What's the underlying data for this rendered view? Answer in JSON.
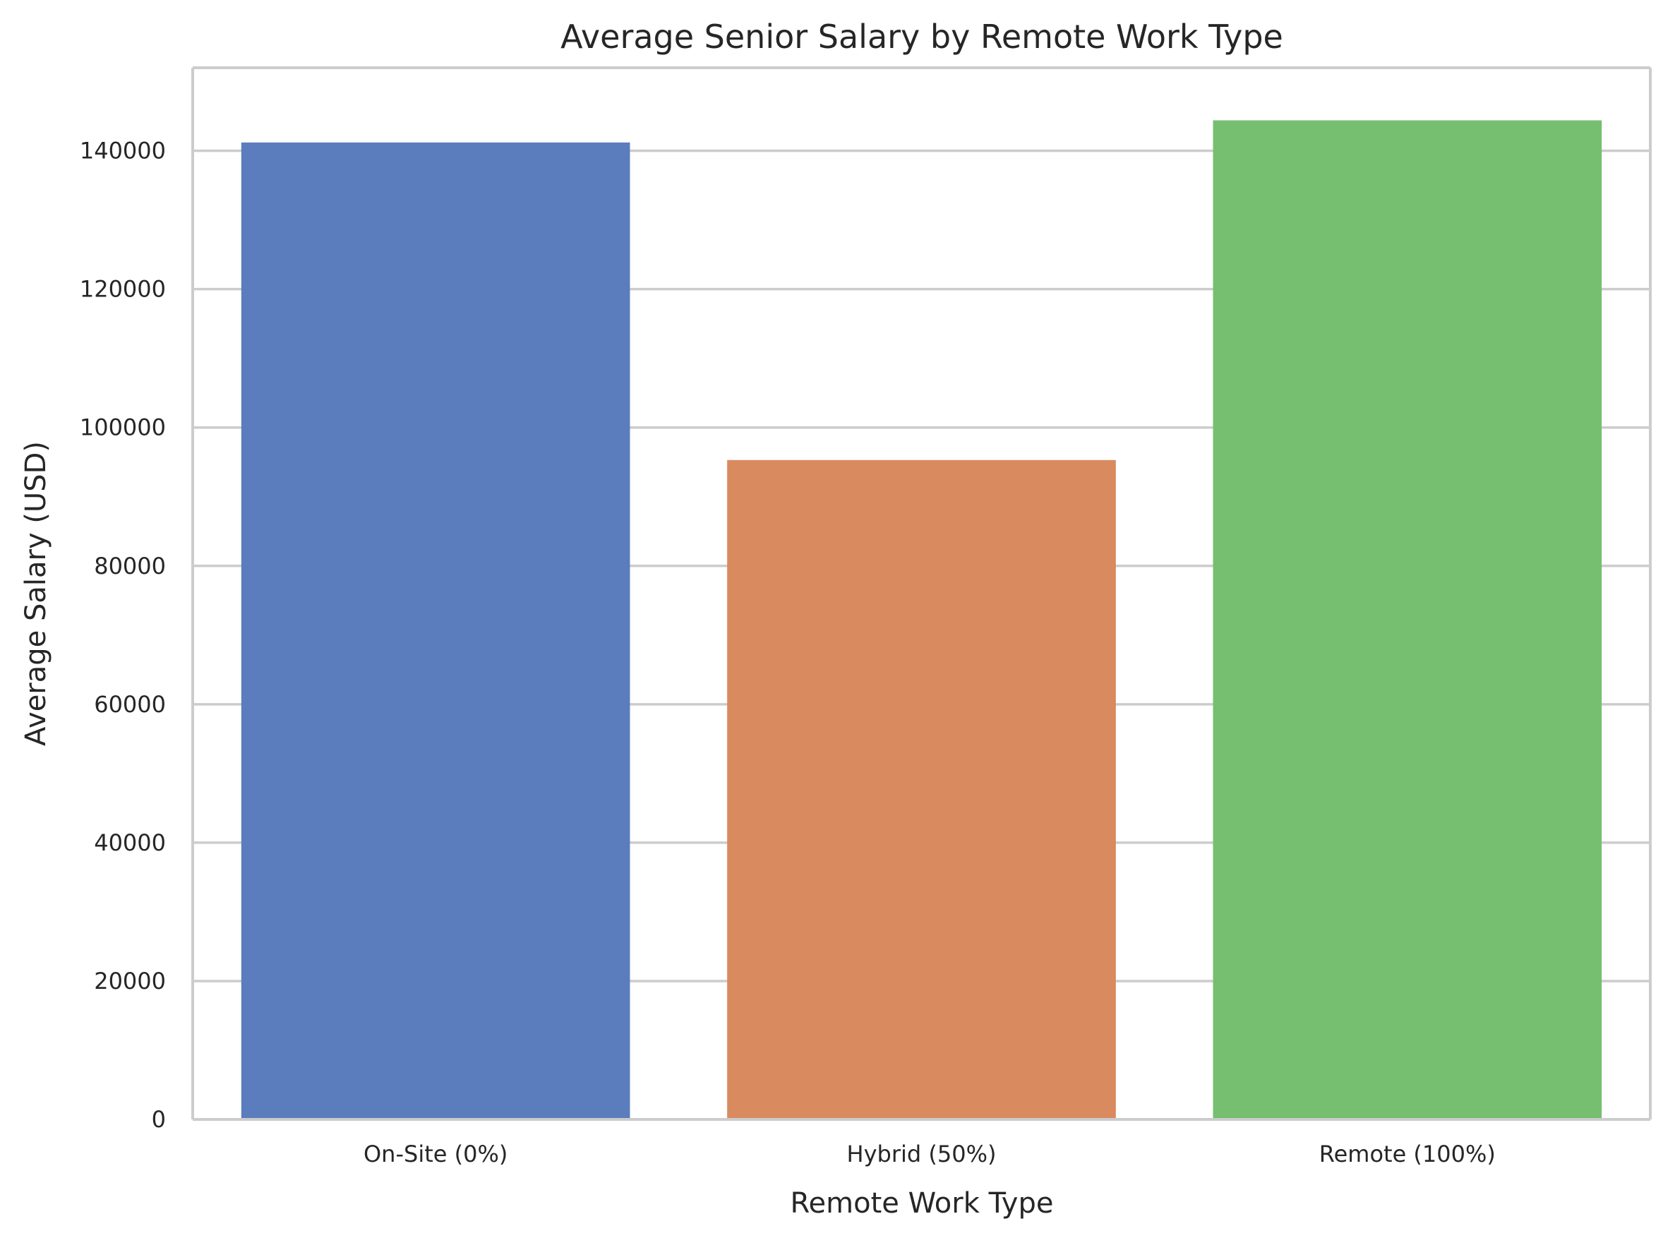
{
  "chart_data": {
    "type": "bar",
    "title": "Average Senior Salary by Remote Work Type",
    "xlabel": "Remote Work Type",
    "ylabel": "Average Salary (USD)",
    "categories": [
      "On-Site (0%)",
      "Hybrid (50%)",
      "Remote (100%)"
    ],
    "values": [
      141200,
      95300,
      144400
    ],
    "colors": [
      "#5b7dbd",
      "#d98a5f",
      "#76bf70"
    ],
    "ylim": [
      0,
      152000
    ],
    "yticks": [
      0,
      20000,
      40000,
      60000,
      80000,
      100000,
      120000,
      140000
    ],
    "ytick_labels": [
      "0",
      "20000",
      "40000",
      "60000",
      "80000",
      "100000",
      "120000",
      "140000"
    ],
    "grid": "horizontal",
    "legend": "none"
  }
}
